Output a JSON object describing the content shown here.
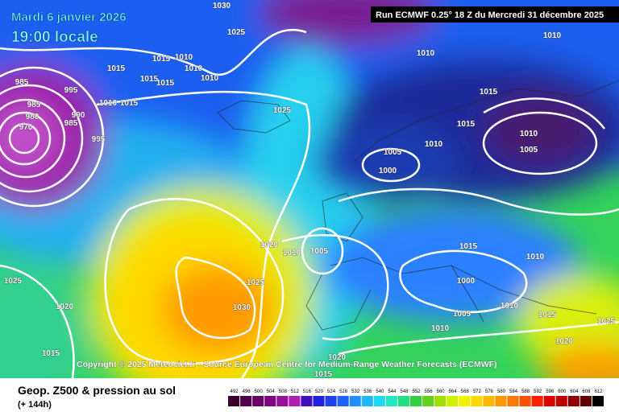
{
  "header": {
    "date": "Mardi 6 janvier 2026",
    "time": "19:00 locale",
    "run": "Run ECMWF 0.25° 18 Z du Mercredi 31 décembre 2025"
  },
  "map": {
    "copyright": "Copyright © 2025 Meteociel.fr - Source European Centre for Medium-Range Weather Forecasts (ECMWF)",
    "isobar_labels": [
      "1030",
      "1025",
      "1015",
      "1015",
      "1010",
      "1015",
      "1015",
      "1010",
      "1010",
      "985",
      "995",
      "985",
      "980",
      "990",
      "985",
      "970",
      "995",
      "1010",
      "1015",
      "1025",
      "1010",
      "1010",
      "1015",
      "1015",
      "1010",
      "1010",
      "1005",
      "1005",
      "1000",
      "1020",
      "1010",
      "1005",
      "1025",
      "1025",
      "1030",
      "1020",
      "1015",
      "1010",
      "1000",
      "1005",
      "1010",
      "1015",
      "1025",
      "1010",
      "1020",
      "1015",
      "1020",
      "1015"
    ]
  },
  "footer": {
    "title": "Geop. Z500 & pression au sol",
    "subtitle": "(+ 144h)",
    "scale": [
      492,
      496,
      500,
      504,
      508,
      512,
      516,
      520,
      524,
      528,
      532,
      536,
      540,
      544,
      548,
      552,
      556,
      560,
      564,
      568,
      572,
      576,
      580,
      584,
      588,
      592,
      596,
      600,
      604,
      608,
      612
    ]
  }
}
